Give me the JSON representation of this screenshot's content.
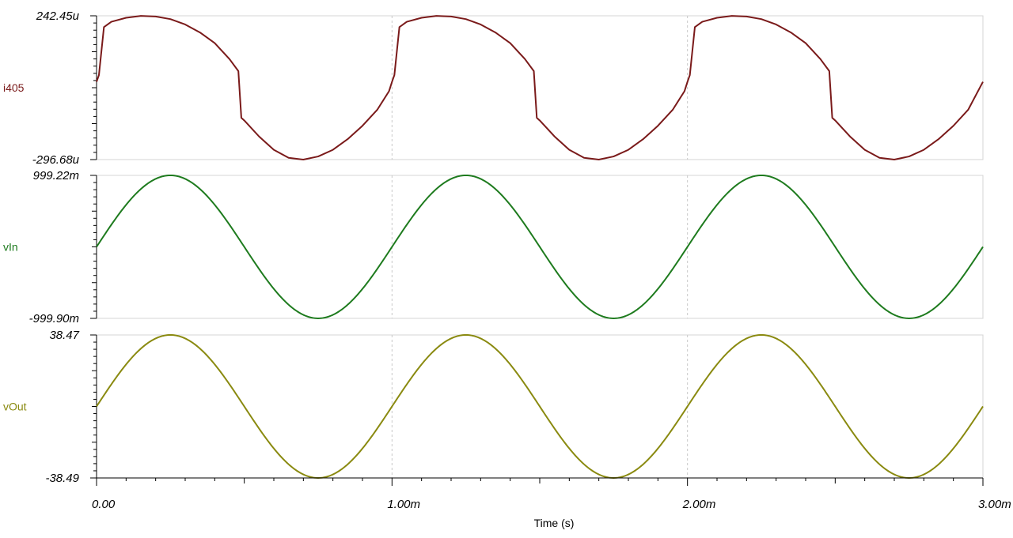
{
  "chart_data": {
    "type": "line",
    "xlabel": "Time (s)",
    "x_unit_scale": "m",
    "xlim": [
      0,
      3.0
    ],
    "x_ticks": [
      "0.00",
      "1.00m",
      "2.00m",
      "3.00m"
    ],
    "x_tick_values": [
      0,
      1.0,
      2.0,
      3.0
    ],
    "grid": "vertical dotted at major x ticks",
    "panels": [
      {
        "name": "i405",
        "color": "#7a1a1a",
        "ylim": [
          -296.68,
          242.45
        ],
        "ymax_label": "242.45u",
        "ymin_label": "-296.68u",
        "unit": "uA",
        "points": [
          [
            0.0,
            -5
          ],
          [
            0.008,
            20
          ],
          [
            0.025,
            200
          ],
          [
            0.05,
            220
          ],
          [
            0.1,
            235
          ],
          [
            0.15,
            242
          ],
          [
            0.2,
            240
          ],
          [
            0.25,
            230
          ],
          [
            0.3,
            210
          ],
          [
            0.35,
            180
          ],
          [
            0.4,
            140
          ],
          [
            0.45,
            80
          ],
          [
            0.48,
            35
          ],
          [
            0.49,
            -140
          ],
          [
            0.5,
            -150
          ],
          [
            0.55,
            -210
          ],
          [
            0.6,
            -260
          ],
          [
            0.65,
            -290
          ],
          [
            0.7,
            -296.68
          ],
          [
            0.75,
            -285
          ],
          [
            0.8,
            -260
          ],
          [
            0.85,
            -220
          ],
          [
            0.9,
            -170
          ],
          [
            0.95,
            -110
          ],
          [
            0.99,
            -40
          ],
          [
            1.0,
            -5
          ],
          [
            1.008,
            20
          ],
          [
            1.025,
            200
          ],
          [
            1.05,
            220
          ],
          [
            1.1,
            235
          ],
          [
            1.15,
            242
          ],
          [
            1.2,
            240
          ],
          [
            1.25,
            230
          ],
          [
            1.3,
            210
          ],
          [
            1.35,
            180
          ],
          [
            1.4,
            140
          ],
          [
            1.45,
            80
          ],
          [
            1.48,
            35
          ],
          [
            1.49,
            -140
          ],
          [
            1.5,
            -150
          ],
          [
            1.55,
            -210
          ],
          [
            1.6,
            -260
          ],
          [
            1.65,
            -290
          ],
          [
            1.7,
            -296.68
          ],
          [
            1.75,
            -285
          ],
          [
            1.8,
            -260
          ],
          [
            1.85,
            -220
          ],
          [
            1.9,
            -170
          ],
          [
            1.95,
            -110
          ],
          [
            1.99,
            -40
          ],
          [
            2.0,
            -5
          ],
          [
            2.008,
            20
          ],
          [
            2.025,
            200
          ],
          [
            2.05,
            220
          ],
          [
            2.1,
            235
          ],
          [
            2.15,
            242
          ],
          [
            2.2,
            240
          ],
          [
            2.25,
            230
          ],
          [
            2.3,
            210
          ],
          [
            2.35,
            180
          ],
          [
            2.4,
            140
          ],
          [
            2.45,
            80
          ],
          [
            2.48,
            35
          ],
          [
            2.49,
            -140
          ],
          [
            2.5,
            -150
          ],
          [
            2.55,
            -210
          ],
          [
            2.6,
            -260
          ],
          [
            2.65,
            -290
          ],
          [
            2.7,
            -296.68
          ],
          [
            2.75,
            -285
          ],
          [
            2.8,
            -260
          ],
          [
            2.85,
            -220
          ],
          [
            2.9,
            -170
          ],
          [
            2.95,
            -110
          ],
          [
            3.0,
            -5
          ]
        ]
      },
      {
        "name": "vIn",
        "color": "#1e7b1e",
        "ylim": [
          -999.9,
          999.22
        ],
        "ymax_label": "999.22m",
        "ymin_label": "-999.90m",
        "unit": "mV",
        "waveform": {
          "kind": "sine",
          "amplitude": 999.5,
          "frequency_per_ms": 1,
          "phase": 0
        }
      },
      {
        "name": "vOut",
        "color": "#8a8a10",
        "ylim": [
          -38.49,
          38.47
        ],
        "ymax_label": "38.47",
        "ymin_label": "-38.49",
        "unit": "V",
        "waveform": {
          "kind": "sine",
          "amplitude": 38.48,
          "frequency_per_ms": 1,
          "phase": 0
        }
      }
    ]
  }
}
